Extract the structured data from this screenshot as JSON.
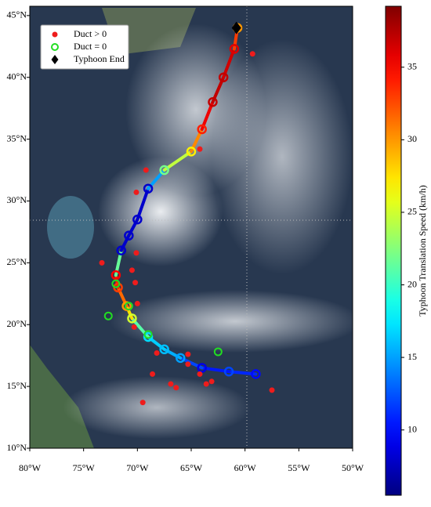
{
  "chart_data": {
    "type": "map",
    "xlim": [
      -80,
      -50
    ],
    "ylim": [
      10,
      45.75
    ],
    "xticks": [
      {
        "value": -80,
        "label": "80°W"
      },
      {
        "value": -75,
        "label": "75°W"
      },
      {
        "value": -70,
        "label": "70°W"
      },
      {
        "value": -65,
        "label": "65°W"
      },
      {
        "value": -60,
        "label": "60°W"
      },
      {
        "value": -55,
        "label": "55°W"
      },
      {
        "value": -50,
        "label": "50°W"
      }
    ],
    "yticks": [
      {
        "value": 10,
        "label": "10°N"
      },
      {
        "value": 15,
        "label": "15°N"
      },
      {
        "value": 20,
        "label": "20°N"
      },
      {
        "value": 25,
        "label": "25°N"
      },
      {
        "value": 30,
        "label": "30°N"
      },
      {
        "value": 35,
        "label": "35°N"
      },
      {
        "value": 40,
        "label": "40°N"
      },
      {
        "value": 45,
        "label": "45°N"
      }
    ],
    "colormap": "jet",
    "track": {
      "lon": [
        -59,
        -61.5,
        -64,
        -66,
        -67.5,
        -69,
        -70.5,
        -71,
        -71.8,
        -72,
        -71.5,
        -70.8,
        -70,
        -69,
        -67.5,
        -65,
        -64,
        -63,
        -62,
        -61,
        -60.7
      ],
      "lat": [
        16,
        16.2,
        16.5,
        17.3,
        18,
        19,
        20.5,
        21.5,
        23,
        24,
        26,
        27.2,
        28.5,
        31,
        32.5,
        34,
        35.8,
        38,
        40,
        42.3,
        44
      ],
      "speed": [
        10,
        12,
        9,
        15,
        16,
        17,
        25,
        30,
        33,
        35,
        8,
        8,
        8,
        8,
        22,
        27,
        34,
        37,
        37,
        36,
        30
      ]
    },
    "series": [
      {
        "name": "Duct > 0",
        "color": "#ee1c1c",
        "marker": "dot",
        "lon": [
          -59.3,
          -64.2,
          -69.2,
          -70.1,
          -70.1,
          -73.3,
          -70.5,
          -70,
          -70.3,
          -68.2,
          -65.3,
          -65.3,
          -68.6,
          -66.9,
          -66.4,
          -69.5,
          -63.1,
          -57.5,
          -63.6,
          -70.2,
          -64.2
        ],
        "lat": [
          41.9,
          34.2,
          32.5,
          30.7,
          25.8,
          25,
          24.4,
          21.7,
          19.8,
          17.7,
          17.6,
          16.8,
          16,
          15.2,
          14.9,
          13.7,
          15.4,
          14.7,
          15.2,
          23.4,
          16
        ]
      },
      {
        "name": "Duct = 0",
        "color": "#22dd22",
        "marker": "ring",
        "lon": [
          -72,
          -70.8,
          -72.7,
          -69,
          -62.5
        ],
        "lat": [
          23.3,
          21.5,
          20.7,
          19.2,
          17.8
        ]
      },
      {
        "name": "Typhoon End",
        "color": "#000000",
        "marker": "diamond",
        "lon": [
          -60.8
        ],
        "lat": [
          44
        ]
      }
    ],
    "colorbar": {
      "label": "Typhoon Translation Speed (km/h)",
      "lim": [
        5.5,
        39.2
      ],
      "ticks": [
        10,
        15,
        20,
        25,
        30,
        35
      ]
    }
  }
}
